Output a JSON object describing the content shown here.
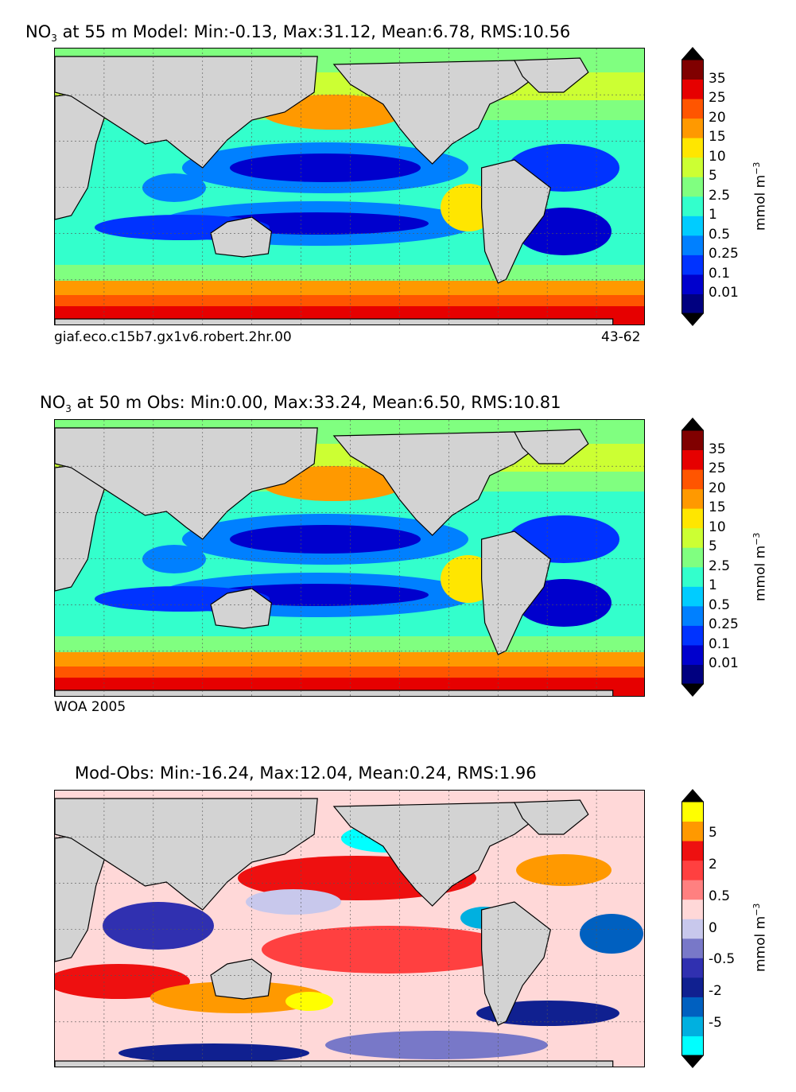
{
  "panels": [
    {
      "title_pre": "NO",
      "title_sub": "3",
      "title_post": " at 55 m Model: Min:-0.13, Max:31.12, Mean:6.78, RMS:10.56",
      "footer_left": "giaf.eco.c15b7.gx1v6.robert.2hr.00",
      "footer_right": "43-62"
    },
    {
      "title_pre": "NO",
      "title_sub": "3",
      "title_post": " at 50 m Obs: Min:0.00, Max:33.24, Mean:6.50, RMS:10.81",
      "footer_left": "WOA 2005",
      "footer_right": ""
    },
    {
      "title_pre": "Mod-Obs: Min:-16.24, Max:12.04, Mean:0.24, RMS:1.96",
      "title_sub": "",
      "title_post": "",
      "footer_left": "",
      "footer_right": ""
    }
  ],
  "colorbars": [
    {
      "unit_base": "mmol m",
      "unit_exp": "−3",
      "ticks": [
        "35",
        "25",
        "20",
        "15",
        "10",
        "5",
        "2.5",
        "1",
        "0.5",
        "0.25",
        "0.1",
        "0.01"
      ],
      "colors": [
        "#000080",
        "#0000cd",
        "#0033ff",
        "#0080ff",
        "#00ccff",
        "#33ffcc",
        "#80ff80",
        "#ccff33",
        "#ffe600",
        "#ff9900",
        "#ff5500",
        "#e60000",
        "#800000"
      ]
    },
    {
      "unit_base": "mmol m",
      "unit_exp": "−3",
      "ticks": [
        "35",
        "25",
        "20",
        "15",
        "10",
        "5",
        "2.5",
        "1",
        "0.5",
        "0.25",
        "0.1",
        "0.01"
      ],
      "colors": [
        "#000080",
        "#0000cd",
        "#0033ff",
        "#0080ff",
        "#00ccff",
        "#33ffcc",
        "#80ff80",
        "#ccff33",
        "#ffe600",
        "#ff9900",
        "#ff5500",
        "#e60000",
        "#800000"
      ]
    },
    {
      "unit_base": "mmol m",
      "unit_exp": "−3",
      "ticks": [
        "5",
        "2",
        "0.5",
        "0",
        "-0.5",
        "-2",
        "-5"
      ],
      "colors": [
        "#00ffff",
        "#00b0e0",
        "#0060c0",
        "#102090",
        "#3030b0",
        "#7878c8",
        "#c8c8ec",
        "#ffd8d8",
        "#ff8080",
        "#ff4040",
        "#ee1010",
        "#ff9900",
        "#ffff00"
      ]
    }
  ],
  "colors": {
    "land": "#d3d3d3",
    "coast": "#000000",
    "grid": "#555555"
  }
}
